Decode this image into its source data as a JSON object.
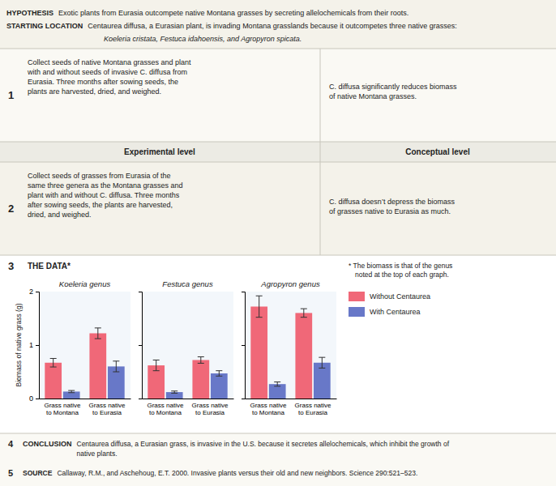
{
  "annotations": [
    "HYPOTHESIS",
    "Exotic plants from Eurasia outcompete native Montana grasses by secreting allelochemicals from their roots.",
    "STARTING LOCATION",
    "Centaurea diffusa, a Eurasian plant, is invading Montana grasslands because it outcompetes three native grasses:",
    "Koeleria cristata, Festuca idahoensis, and Agropyron spicata.",
    "Experimental level",
    "Conceptual level",
    "1",
    "Collect seeds of native Montana grasses and plant\nwith and without seeds of invasive C. diffusa from\nEurasia. Three months after sowing seeds, the\nplants are harvested, dried, and weighed.",
    "C. diffusa significantly reduces biomass\nof native Montana grasses.",
    "2",
    "Collect seeds of grasses from Eurasia of the\nsame three genera as the Montana grasses and\nplant with and without C. diffusa. Three months\nafter sowing seeds, the plants are harvested,\ndried, and weighed.",
    "C. diffusa doesn’t depress the biomass\nof grasses native to Eurasia as much.",
    "3",
    "THE DATA*",
    "* The biomass is that of the genus\nnoted at the top of each graph.",
    "4",
    "CONCLUSION",
    "Centaurea diffusa, a Eurasian grass, is invasive in the U.S. because it secretes allelochemicals, which inhibit the growth of\nnative plants.",
    "5",
    "SOURCE",
    "Callaway, R.M., and Aschehoug, E.T. 2000. Invasive plants versus their old and new neighbors. Science 290:521–523."
  ],
  "chart_data": [
    {
      "type": "bar",
      "title": "Koeleria genus",
      "ylabel": "Biomass of native grass (g)",
      "categories": [
        "Grass native\nto Montana",
        "Grass native\nto Eurasia"
      ],
      "series": [
        {
          "name": "Without Centaurea",
          "color": "#f06878",
          "values": [
            0.67,
            1.22
          ],
          "errors": [
            0.08,
            0.1
          ]
        },
        {
          "name": "With Centaurea",
          "color": "#6878c8",
          "values": [
            0.13,
            0.6
          ],
          "errors": [
            0.02,
            0.1
          ]
        }
      ],
      "ylim": [
        0,
        2
      ],
      "yticks": [
        0,
        1,
        2
      ],
      "grid": false,
      "legend": "right"
    },
    {
      "type": "bar",
      "title": "Festuca genus",
      "categories": [
        "Grass native\nto Montana",
        "Grass native\nto Eurasia"
      ],
      "series": [
        {
          "name": "Without Centaurea",
          "color": "#f06878",
          "values": [
            0.62,
            0.72
          ],
          "errors": [
            0.1,
            0.06
          ]
        },
        {
          "name": "With Centaurea",
          "color": "#6878c8",
          "values": [
            0.12,
            0.47
          ],
          "errors": [
            0.02,
            0.05
          ]
        }
      ],
      "ylim": [
        0,
        2
      ],
      "yticks": [
        0,
        1,
        2
      ],
      "grid": false,
      "tick_labels": "x"
    },
    {
      "type": "bar",
      "title": "Agropyron genus",
      "categories": [
        "Grass native\nto Montana",
        "Grass native\nto Eurasia"
      ],
      "series": [
        {
          "name": "Without Centaurea",
          "color": "#f06878",
          "values": [
            1.72,
            1.6
          ],
          "errors": [
            0.2,
            0.08
          ]
        },
        {
          "name": "With Centaurea",
          "color": "#6878c8",
          "values": [
            0.27,
            0.67
          ],
          "errors": [
            0.04,
            0.1
          ]
        }
      ],
      "ylim": [
        0,
        2
      ],
      "yticks": [
        0,
        1,
        2
      ],
      "grid": false,
      "tick_labels": "x"
    }
  ]
}
